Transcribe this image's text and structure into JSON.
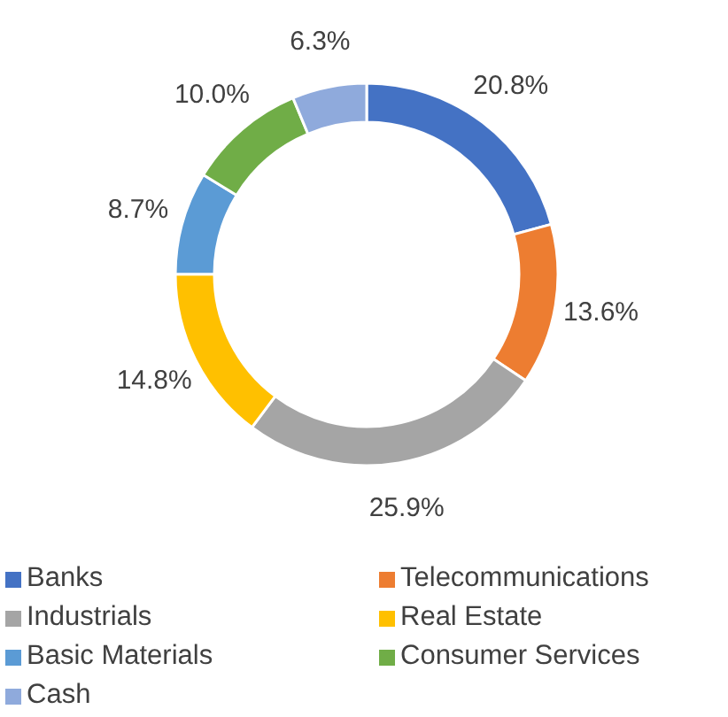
{
  "chart_data": {
    "type": "donut",
    "categories": [
      "Banks",
      "Telecommunications",
      "Industrials",
      "Real Estate",
      "Basic Materials",
      "Consumer Services",
      "Cash"
    ],
    "values": [
      20.8,
      13.6,
      25.9,
      14.8,
      8.7,
      10.0,
      6.3
    ],
    "value_labels": [
      "20.8%",
      "13.6%",
      "25.9%",
      "14.8%",
      "8.7%",
      "10.0%",
      "6.3%"
    ],
    "colors": [
      "#4472c4",
      "#ed7d31",
      "#a5a5a5",
      "#ffc000",
      "#5b9bd5",
      "#70ad47",
      "#8faadc"
    ],
    "legend": "bottom"
  }
}
